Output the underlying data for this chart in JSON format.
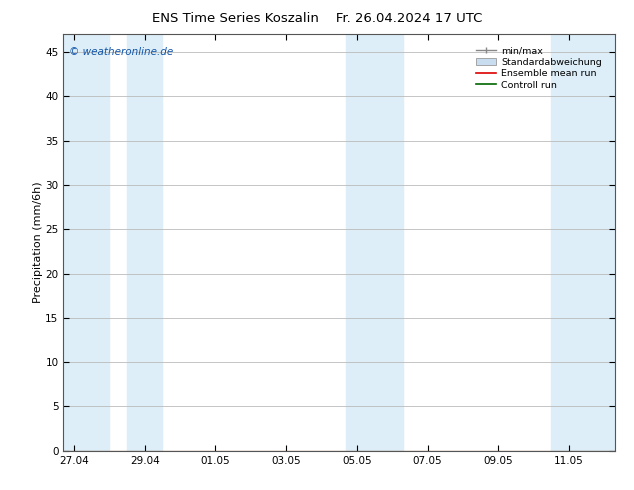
{
  "title_left": "ENS Time Series Koszalin",
  "title_right": "Fr. 26.04.2024 17 UTC",
  "ylabel": "Precipitation (mm/6h)",
  "watermark": "© weatheronline.de",
  "ylim": [
    0,
    47
  ],
  "yticks": [
    0,
    5,
    10,
    15,
    20,
    25,
    30,
    35,
    40,
    45
  ],
  "xtick_labels": [
    "27.04",
    "29.04",
    "01.05",
    "03.05",
    "05.05",
    "07.05",
    "09.05",
    "11.05"
  ],
  "xtick_positions": [
    0,
    2,
    4,
    6,
    8,
    10,
    12,
    14
  ],
  "xlim": [
    -0.3,
    15.3
  ],
  "shaded_bands": [
    [
      -0.3,
      1.0
    ],
    [
      1.5,
      2.5
    ],
    [
      7.7,
      9.3
    ],
    [
      13.5,
      15.3
    ]
  ],
  "band_color": "#ddeef8",
  "background_color": "#ffffff",
  "plot_bg_color": "#ffffff",
  "grid_color": "#bbbbbb",
  "title_fontsize": 9.5,
  "axis_fontsize": 8,
  "tick_fontsize": 7.5
}
